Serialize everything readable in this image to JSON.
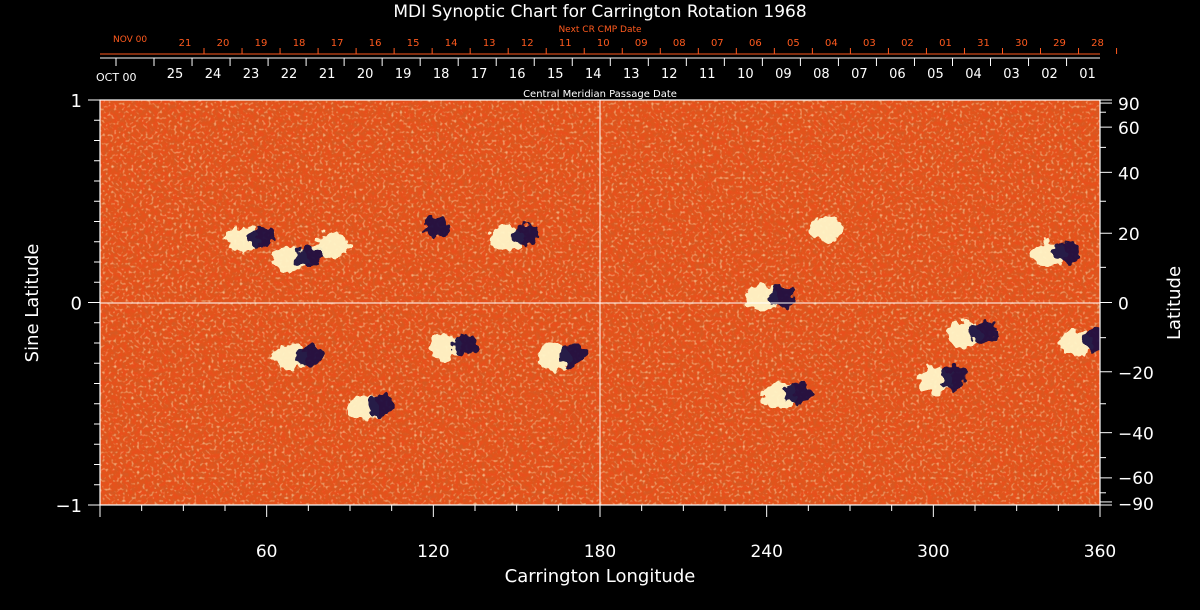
{
  "chart_data": {
    "type": "heatmap",
    "title": "MDI Synoptic Chart for Carrington Rotation 1968",
    "xlabel": "Carrington Longitude",
    "ylabel_left": "Sine Latitude",
    "ylabel_right": "Latitude",
    "xlim": [
      0,
      360
    ],
    "ylim": [
      -1,
      1
    ],
    "x_ticks": [
      60,
      120,
      180,
      240,
      300,
      360
    ],
    "y_ticks_left": [
      "1",
      "0",
      "−1"
    ],
    "y_ticks_right": [
      90,
      60,
      40,
      20,
      0,
      -20,
      -40,
      -60,
      -90
    ],
    "y_ticks_right_labels": [
      "90",
      "60",
      "40",
      "20",
      "0",
      "−20",
      "−40",
      "−60",
      "−90"
    ],
    "top_axis_label": "Central Meridian Passage Date",
    "top_axis_start_label": "OCT 00",
    "top_axis_dates": [
      "25",
      "24",
      "23",
      "22",
      "21",
      "20",
      "19",
      "18",
      "17",
      "16",
      "15",
      "14",
      "13",
      "12",
      "11",
      "10",
      "09",
      "08",
      "07",
      "06",
      "05",
      "04",
      "03",
      "02",
      "01"
    ],
    "next_cr_label": "Next CR CMP Date",
    "next_cr_start_label": "NOV 00",
    "next_cr_dates": [
      "21",
      "20",
      "19",
      "18",
      "17",
      "16",
      "15",
      "14",
      "13",
      "12",
      "11",
      "10",
      "09",
      "08",
      "07",
      "06",
      "05",
      "04",
      "03",
      "02",
      "01",
      "31",
      "30",
      "29",
      "28"
    ],
    "colors": {
      "background": "#000000",
      "field_base": "#e8501a",
      "positive_polarity": "#fff6c8",
      "negative_polarity": "#1a1040",
      "axis": "#ffffff",
      "next_cr": "#ff5a1e"
    },
    "active_regions": [
      {
        "lon": 55,
        "sinlat": 0.31,
        "polarity": "mixed"
      },
      {
        "lon": 72,
        "sinlat": 0.22,
        "polarity": "mixed"
      },
      {
        "lon": 87,
        "sinlat": 0.28,
        "polarity": "positive"
      },
      {
        "lon": 118,
        "sinlat": 0.36,
        "polarity": "negative"
      },
      {
        "lon": 150,
        "sinlat": 0.32,
        "polarity": "mixed"
      },
      {
        "lon": 242,
        "sinlat": 0.02,
        "polarity": "mixed"
      },
      {
        "lon": 265,
        "sinlat": 0.36,
        "polarity": "positive"
      },
      {
        "lon": 345,
        "sinlat": 0.24,
        "polarity": "mixed"
      },
      {
        "lon": 72,
        "sinlat": -0.27,
        "polarity": "mixed"
      },
      {
        "lon": 98,
        "sinlat": -0.52,
        "polarity": "mixed"
      },
      {
        "lon": 128,
        "sinlat": -0.22,
        "polarity": "mixed"
      },
      {
        "lon": 167,
        "sinlat": -0.27,
        "polarity": "mixed"
      },
      {
        "lon": 248,
        "sinlat": -0.46,
        "polarity": "mixed"
      },
      {
        "lon": 304,
        "sinlat": -0.38,
        "polarity": "mixed"
      },
      {
        "lon": 315,
        "sinlat": -0.16,
        "polarity": "mixed"
      },
      {
        "lon": 355,
        "sinlat": -0.2,
        "polarity": "mixed"
      }
    ]
  }
}
